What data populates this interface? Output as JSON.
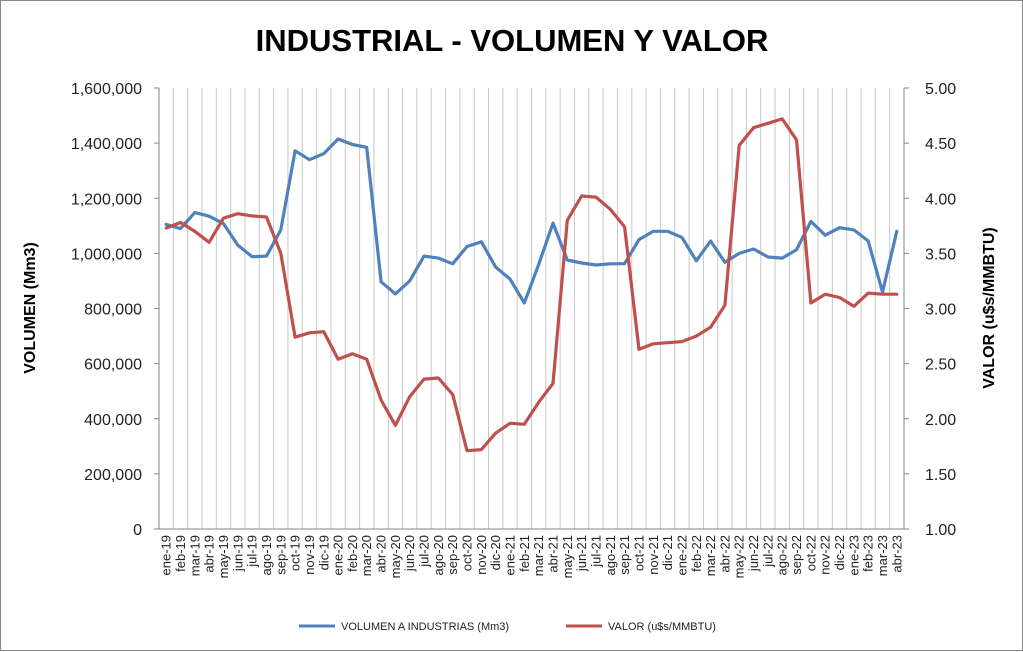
{
  "chart_data": {
    "type": "line",
    "title": "INDUSTRIAL - VOLUMEN Y VALOR",
    "ylabel": "VOLUMEN (Mm3)",
    "y2label": "VALOR (u$s/MMBTU)",
    "ylim": [
      0,
      1600000
    ],
    "y2lim": [
      1.0,
      5.0
    ],
    "yticks": [
      "0",
      "200,000",
      "400,000",
      "600,000",
      "800,000",
      "1,000,000",
      "1,200,000",
      "1,400,000",
      "1,600,000"
    ],
    "y2ticks": [
      "1.00",
      "1.50",
      "2.00",
      "2.50",
      "3.00",
      "3.50",
      "4.00",
      "4.50",
      "5.00"
    ],
    "grid": "vertical",
    "legend": "bottom",
    "categories": [
      "ene-19",
      "feb-19",
      "mar-19",
      "abr-19",
      "may-19",
      "jun-19",
      "jul-19",
      "ago-19",
      "sep-19",
      "oct-19",
      "nov-19",
      "dic-19",
      "ene-20",
      "feb-20",
      "mar-20",
      "abr-20",
      "may-20",
      "jun-20",
      "jul-20",
      "ago-20",
      "sep-20",
      "oct-20",
      "nov-20",
      "dic-20",
      "ene-21",
      "feb-21",
      "mar-21",
      "abr-21",
      "may-21",
      "jun-21",
      "jul-21",
      "ago-21",
      "sep-21",
      "oct-21",
      "nov-21",
      "dic-21",
      "ene-22",
      "feb-22",
      "mar-22",
      "abr-22",
      "may-22",
      "jun-22",
      "jul-22",
      "ago-22",
      "sep-22",
      "oct-22",
      "nov-22",
      "dic-22",
      "ene-23",
      "feb-23",
      "mar-23",
      "abr-23"
    ],
    "series": [
      {
        "name": "VOLUMEN A INDUSTRIAS (Mm3)",
        "axis": "left",
        "color": "#4F81BD",
        "values": [
          1105000,
          1090000,
          1148000,
          1135000,
          1108000,
          1030000,
          988000,
          990000,
          1085000,
          1372000,
          1340000,
          1362000,
          1415000,
          1395000,
          1385000,
          897000,
          853000,
          900000,
          990000,
          983000,
          962000,
          1025000,
          1042000,
          950000,
          907000,
          820000,
          960000,
          1110000,
          976000,
          965000,
          958000,
          962000,
          963000,
          1050000,
          1080000,
          1080000,
          1058000,
          973000,
          1045000,
          968000,
          1000000,
          1016000,
          987000,
          983000,
          1013000,
          1116000,
          1066000,
          1093000,
          1085000,
          1045000,
          860000,
          1080000
        ]
      },
      {
        "name": "VALOR (u$s/MMBTU)",
        "axis": "right",
        "color": "#C0504D",
        "values": [
          3.73,
          3.78,
          3.7,
          3.6,
          3.82,
          3.86,
          3.84,
          3.83,
          3.5,
          2.74,
          2.78,
          2.79,
          2.54,
          2.59,
          2.54,
          2.17,
          1.94,
          2.2,
          2.36,
          2.37,
          2.22,
          1.71,
          1.72,
          1.87,
          1.96,
          1.95,
          2.15,
          2.32,
          3.8,
          4.02,
          4.01,
          3.9,
          3.74,
          2.63,
          2.68,
          2.69,
          2.7,
          2.75,
          2.83,
          3.03,
          4.48,
          4.64,
          4.68,
          4.72,
          4.53,
          3.05,
          3.13,
          3.1,
          3.02,
          3.14,
          3.13,
          3.13
        ]
      }
    ]
  }
}
